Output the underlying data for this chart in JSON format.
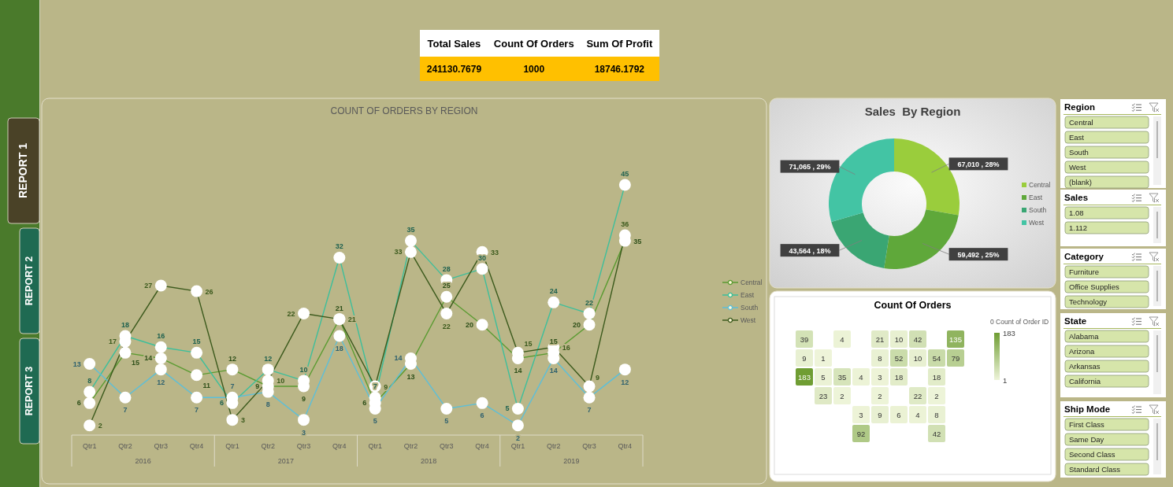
{
  "chart_data": [
    {
      "type": "other",
      "categories": [
        "Total Sales",
        "Count Of Orders",
        "Sum Of Profit"
      ],
      "values": [
        241130.7679,
        1000,
        18746.1792
      ],
      "data_labels": true
    },
    {
      "type": "other",
      "categories": [
        "REPORT 1",
        "REPORT 2",
        "REPORT 3"
      ]
    },
    {
      "type": "line",
      "title": "COUNT OF ORDERS BY REGION",
      "categories": [
        "Qtr1",
        "Qtr2",
        "Qtr3",
        "Qtr4",
        "Qtr1",
        "Qtr2",
        "Qtr3",
        "Qtr4",
        "Qtr1",
        "Qtr2",
        "Qtr3",
        "Qtr4",
        "Qtr1",
        "Qtr2",
        "Qtr3",
        "Qtr4"
      ],
      "annotations": [
        "2016",
        "2017",
        "2018",
        "2019"
      ],
      "series": [
        {
          "name": "Central",
          "color": "#5b9b32",
          "values": [
            6,
            15,
            14,
            11,
            12,
            9,
            9,
            21,
            6,
            13,
            25,
            20,
            14,
            15,
            20,
            35
          ]
        },
        {
          "name": "East",
          "color": "#3dbf9b",
          "values": [
            8,
            18,
            16,
            15,
            6,
            12,
            10,
            32,
            7,
            35,
            28,
            30,
            5,
            24,
            22,
            45
          ]
        },
        {
          "name": "South",
          "color": "#5cbfd9",
          "values": [
            13,
            7,
            12,
            7,
            7,
            8,
            3,
            18,
            5,
            14,
            5,
            6,
            2,
            14,
            7,
            12
          ]
        },
        {
          "name": "West",
          "color": "#3c5a1d",
          "values": [
            2,
            17,
            27,
            26,
            3,
            10,
            22,
            21,
            9,
            33,
            22,
            33,
            15,
            16,
            9,
            36
          ]
        }
      ],
      "marker": "circle",
      "data_labels": true,
      "legend": "right"
    },
    {
      "type": "donut",
      "title": "Sales  By Region",
      "categories": [
        "Central",
        "East",
        "South",
        "West"
      ],
      "values": [
        67010,
        59492,
        43564,
        71065
      ],
      "colors": [
        "#9acd3c",
        "#5fa83a",
        "#3aa673",
        "#43c4a4"
      ],
      "value_labels": [
        "67,010 , 28%",
        "59,492 , 25%",
        "43,564 , 18%",
        "71,065 , 29%"
      ],
      "legend": "right"
    },
    {
      "type": "other",
      "title": "Count Of Orders",
      "categories": [
        null,
        null,
        null,
        null,
        null,
        null,
        null,
        null,
        null,
        null,
        null,
        null,
        null,
        null,
        null,
        null,
        null,
        null,
        null,
        null,
        null,
        null,
        null,
        null,
        null,
        null,
        null,
        null,
        null,
        null,
        null,
        null
      ],
      "values": [
        39,
        4,
        21,
        10,
        42,
        135,
        9,
        1,
        8,
        52,
        10,
        54,
        79,
        183,
        5,
        35,
        4,
        3,
        18,
        18,
        23,
        2,
        2,
        22,
        2,
        3,
        9,
        6,
        4,
        8,
        92,
        42
      ],
      "value_labels": [
        "39",
        "4",
        "21",
        "10",
        "42",
        "135",
        "9",
        "1",
        "8",
        "52",
        "10",
        "54",
        "79",
        "183",
        "5",
        "35",
        "4",
        "3",
        "18",
        "18",
        "23",
        "2",
        "2",
        "22",
        "2",
        "3",
        "9",
        "6",
        "4",
        "8",
        "92",
        "42"
      ],
      "clabel": "0 Count of Order ID",
      "annotations": [
        "183",
        "1"
      ]
    },
    {
      "type": "other",
      "title": "Region",
      "categories": [
        "Central",
        "East",
        "South",
        "West",
        "(blank)"
      ]
    },
    {
      "type": "other",
      "title": "Sales",
      "categories": [
        "1.08",
        "1.112"
      ]
    },
    {
      "type": "other",
      "title": "Category",
      "categories": [
        "Furniture",
        "Office Supplies",
        "Technology"
      ]
    },
    {
      "type": "other",
      "title": "State",
      "categories": [
        "Alabama",
        "Arizona",
        "Arkansas",
        "California"
      ]
    },
    {
      "type": "other",
      "title": "Ship Mode",
      "categories": [
        "First Class",
        "Same Day",
        "Second Class",
        "Standard Class"
      ]
    }
  ]
}
